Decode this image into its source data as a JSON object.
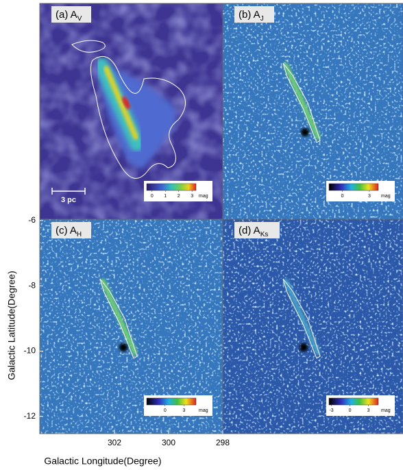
{
  "chart_data": {
    "type": "image-grid",
    "xlabel": "Galactic Longitude(Degree)",
    "ylabel": "Galactic Latitude(Degree)",
    "xlim": [
      304.76,
      298
    ],
    "xticks": [
      302,
      300,
      298
    ],
    "ylim": [
      -12.53,
      -5.96
    ],
    "yticks": [
      -6,
      -8,
      -10,
      -12
    ],
    "panels": [
      {
        "label": "(a) A",
        "sub": "V",
        "scale_bar": "3 pc",
        "colorbar": {
          "lim": [
            -0.4,
            3.3
          ],
          "ticks": [
            0,
            1,
            2,
            3
          ],
          "unit": "mag"
        }
      },
      {
        "label": "(b) A",
        "sub": "J",
        "colorbar": {
          "lim": [
            -1.5,
            4
          ],
          "ticks": [
            0,
            3
          ],
          "unit": "mag"
        }
      },
      {
        "label": "(c) A",
        "sub": "H",
        "colorbar": {
          "lim": [
            -2.9,
            4.9
          ],
          "ticks": [
            0,
            3
          ],
          "unit": "mag"
        }
      },
      {
        "label": "(d) A",
        "sub": "Ks",
        "colorbar": {
          "lim": [
            -3.4,
            4.6
          ],
          "ticks": [
            -3,
            0,
            3
          ],
          "unit": "mag"
        }
      }
    ]
  }
}
